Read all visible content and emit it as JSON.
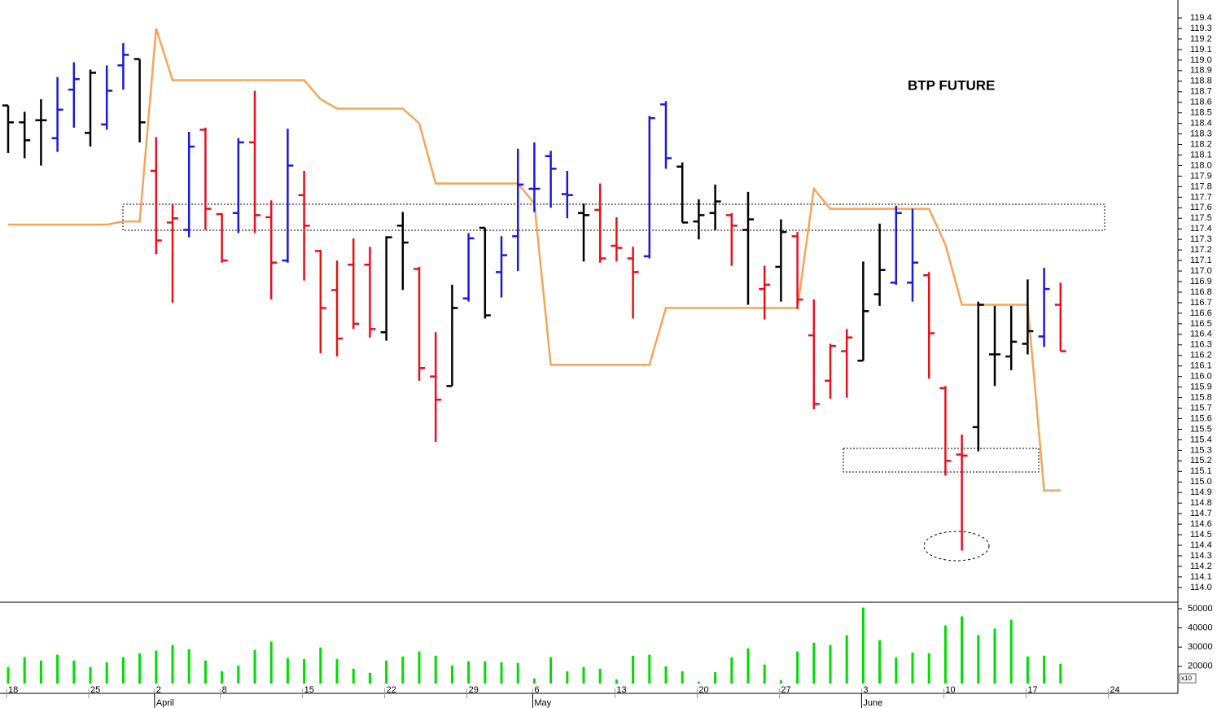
{
  "chart_data": {
    "type": "ohlc",
    "title": "BTP FUTURE",
    "categories": [
      "18",
      null,
      null,
      null,
      null,
      "25",
      null,
      null,
      null,
      "2",
      null,
      null,
      null,
      "8",
      null,
      null,
      null,
      null,
      "15",
      null,
      null,
      null,
      null,
      "22",
      null,
      null,
      null,
      null,
      "29",
      null,
      null,
      null,
      "6",
      null,
      null,
      null,
      null,
      "13",
      null,
      null,
      null,
      null,
      "20",
      null,
      null,
      null,
      null,
      "27",
      null,
      null,
      null,
      null,
      "3",
      null,
      null,
      null,
      null,
      "10",
      null,
      null,
      null,
      null,
      "17",
      null,
      null,
      null,
      null,
      "24",
      null,
      null,
      null
    ],
    "months": [
      null,
      null,
      null,
      null,
      null,
      null,
      null,
      null,
      null,
      "April",
      null,
      null,
      null,
      null,
      null,
      null,
      null,
      null,
      null,
      null,
      null,
      null,
      null,
      null,
      null,
      null,
      null,
      null,
      null,
      null,
      null,
      null,
      "May",
      null,
      null,
      null,
      null,
      null,
      null,
      null,
      null,
      null,
      null,
      null,
      null,
      null,
      null,
      null,
      null,
      null,
      null,
      null,
      "June",
      null,
      null,
      null,
      null,
      null,
      null,
      null,
      null,
      null,
      null,
      null,
      null,
      null,
      null,
      null,
      null,
      null,
      null
    ],
    "open": [
      118.57,
      118.41,
      118.43,
      118.26,
      118.72,
      118.31,
      118.39,
      118.95,
      119.01,
      117.95,
      117.46,
      117.39,
      118.34,
      117.54,
      117.55,
      118.22,
      117.51,
      117.1,
      117.72,
      117.19,
      116.82,
      117.06,
      117.06,
      116.42,
      117.43,
      117.02,
      116.0,
      115.91,
      116.74,
      117.41,
      116.99,
      117.33,
      117.78,
      118.09,
      117.73,
      117.55,
      117.58,
      117.24,
      117.12,
      117.14,
      118.58,
      117.99,
      117.47,
      117.55,
      117.53,
      117.39,
      116.83,
      117.04,
      117.33,
      116.39,
      115.96,
      116.24,
      116.15,
      116.78,
      116.89,
      116.89,
      116.96,
      115.89,
      115.26,
      115.52,
      116.21,
      116.19,
      116.31,
      116.38,
      116.68,
      null,
      null,
      null,
      null,
      null,
      null
    ],
    "high": [
      118.57,
      118.51,
      118.63,
      118.84,
      118.98,
      118.91,
      118.95,
      119.16,
      119.01,
      118.27,
      117.64,
      118.32,
      118.36,
      117.55,
      118.26,
      118.71,
      117.67,
      118.35,
      117.95,
      117.2,
      117.1,
      117.31,
      117.23,
      117.33,
      117.56,
      117.04,
      116.42,
      116.87,
      117.36,
      117.41,
      117.33,
      118.16,
      118.22,
      118.14,
      117.95,
      117.64,
      117.83,
      117.51,
      117.23,
      118.47,
      118.61,
      118.03,
      117.68,
      117.82,
      117.55,
      117.75,
      117.05,
      117.49,
      117.37,
      116.73,
      116.31,
      116.45,
      117.09,
      117.45,
      117.62,
      117.59,
      116.99,
      115.91,
      115.45,
      116.71,
      116.67,
      116.67,
      116.92,
      117.03,
      116.89,
      null,
      null,
      null,
      null,
      null,
      null
    ],
    "low": [
      118.12,
      118.07,
      118.0,
      118.13,
      118.36,
      118.18,
      118.34,
      118.72,
      118.22,
      117.16,
      116.7,
      117.32,
      117.39,
      117.08,
      117.36,
      117.36,
      116.73,
      117.08,
      116.91,
      116.22,
      116.19,
      116.45,
      116.37,
      116.34,
      116.82,
      115.96,
      115.38,
      115.91,
      116.71,
      116.55,
      116.75,
      117.0,
      117.56,
      117.6,
      117.5,
      117.09,
      117.08,
      117.09,
      116.55,
      117.12,
      117.97,
      117.46,
      117.3,
      117.39,
      117.05,
      116.68,
      116.54,
      116.71,
      116.64,
      115.69,
      115.79,
      115.8,
      116.15,
      116.67,
      116.87,
      116.71,
      115.98,
      115.06,
      114.35,
      115.29,
      115.91,
      116.06,
      116.21,
      116.28,
      116.24,
      null,
      null,
      null,
      null,
      null,
      null
    ],
    "close": [
      118.41,
      118.24,
      118.43,
      118.53,
      118.82,
      118.88,
      118.71,
      119.05,
      118.41,
      117.29,
      117.5,
      118.18,
      117.59,
      117.1,
      118.22,
      117.53,
      117.08,
      118.0,
      117.43,
      116.65,
      116.36,
      116.5,
      116.45,
      117.32,
      117.27,
      116.08,
      115.78,
      116.65,
      117.31,
      116.58,
      117.15,
      117.82,
      117.78,
      117.97,
      117.72,
      117.53,
      117.12,
      117.22,
      116.99,
      118.45,
      118.07,
      117.46,
      117.53,
      117.66,
      117.43,
      117.49,
      116.87,
      117.37,
      116.73,
      115.74,
      116.29,
      116.37,
      116.62,
      117.01,
      117.55,
      117.08,
      116.41,
      115.2,
      115.25,
      116.68,
      116.21,
      116.33,
      116.43,
      116.83,
      116.24,
      null,
      null,
      null,
      null,
      null,
      null
    ],
    "bar_colors": [
      "#000000",
      "#000000",
      "#000000",
      "#1a1adc",
      "#1a1adc",
      "#000000",
      "#1a1adc",
      "#1a1adc",
      "#000000",
      "#e8101a",
      "#e8101a",
      "#1a1adc",
      "#e8101a",
      "#e8101a",
      "#1a1adc",
      "#e8101a",
      "#e8101a",
      "#1a1adc",
      "#e8101a",
      "#e8101a",
      "#e8101a",
      "#e8101a",
      "#e8101a",
      "#000000",
      "#000000",
      "#e8101a",
      "#e8101a",
      "#000000",
      "#1a1adc",
      "#000000",
      "#1a1adc",
      "#1a1adc",
      "#1a1adc",
      "#1a1adc",
      "#1a1adc",
      "#000000",
      "#e8101a",
      "#e8101a",
      "#e8101a",
      "#1a1adc",
      "#1a1adc",
      "#000000",
      "#000000",
      "#000000",
      "#e8101a",
      "#000000",
      "#e8101a",
      "#000000",
      "#e8101a",
      "#e8101a",
      "#e8101a",
      "#e8101a",
      "#000000",
      "#000000",
      "#1a1adc",
      "#1a1adc",
      "#e8101a",
      "#e8101a",
      "#e8101a",
      "#000000",
      "#000000",
      "#000000",
      "#000000",
      "#1a1adc",
      "#e8101a",
      null,
      null,
      null,
      null,
      null,
      null
    ],
    "line": {
      "color": "#f5a55a",
      "values": [
        117.44,
        117.44,
        117.44,
        117.44,
        117.44,
        117.44,
        117.44,
        117.47,
        117.47,
        119.3,
        118.81,
        118.81,
        118.81,
        118.81,
        118.81,
        118.81,
        118.81,
        118.81,
        118.81,
        118.63,
        118.54,
        118.54,
        118.54,
        118.54,
        118.54,
        118.4,
        117.83,
        117.83,
        117.83,
        117.83,
        117.83,
        117.83,
        117.64,
        116.11,
        116.11,
        116.11,
        116.11,
        116.11,
        116.11,
        116.11,
        116.65,
        116.65,
        116.65,
        116.65,
        116.65,
        116.65,
        116.65,
        116.65,
        116.65,
        117.78,
        117.59,
        117.59,
        117.59,
        117.59,
        117.59,
        117.59,
        117.59,
        117.25,
        116.68,
        116.68,
        116.68,
        116.68,
        116.68,
        114.92,
        114.92,
        null,
        null,
        null,
        null,
        null,
        null
      ]
    },
    "volume": {
      "color": "#00dd00",
      "values": [
        19600,
        24700,
        23000,
        26000,
        23000,
        19600,
        22100,
        24700,
        26800,
        28100,
        31100,
        28900,
        23000,
        17400,
        20400,
        28500,
        32800,
        24300,
        23800,
        29800,
        23800,
        18700,
        16600,
        23000,
        25100,
        27700,
        25500,
        20400,
        22600,
        22600,
        22100,
        21700,
        13600,
        24700,
        17400,
        19600,
        18700,
        13200,
        25500,
        26000,
        20000,
        17400,
        12000,
        17000,
        24700,
        29400,
        20900,
        12800,
        27700,
        32300,
        31100,
        36200,
        50600,
        33600,
        24700,
        27200,
        26800,
        41300,
        46000,
        36200,
        39600,
        44300,
        25100,
        25500,
        21300,
        null,
        null,
        null,
        null,
        null,
        null
      ],
      "ylim": [
        11000,
        52550
      ],
      "yticks": [
        20000,
        30000,
        40000,
        50000
      ],
      "unit_label": "x10"
    },
    "ylim": [
      113.86,
      119.57
    ],
    "yticks": [
      {
        "value": 114,
        "label": "114.0"
      },
      114.1,
      114.2,
      114.3,
      114.4,
      114.5,
      114.6,
      114.7,
      114.8,
      114.9,
      {
        "value": 115,
        "label": "115.0"
      },
      115.1,
      115.2,
      115.3,
      115.4,
      115.5,
      115.6,
      115.7,
      115.8,
      115.9,
      {
        "value": 116,
        "label": "116.0"
      },
      116.1,
      116.2,
      116.3,
      116.4,
      116.5,
      116.6,
      116.7,
      116.8,
      116.9,
      {
        "value": 117,
        "label": "117.0"
      },
      117.1,
      117.2,
      117.3,
      117.4,
      117.5,
      117.6,
      117.7,
      117.8,
      117.9,
      {
        "value": 118,
        "label": "118.0"
      },
      118.1,
      118.2,
      118.3,
      118.4,
      118.5,
      118.6,
      118.7,
      118.8,
      118.9,
      {
        "value": 119,
        "label": "119.0"
      },
      119.1,
      119.2,
      119.3,
      119.4
    ]
  }
}
